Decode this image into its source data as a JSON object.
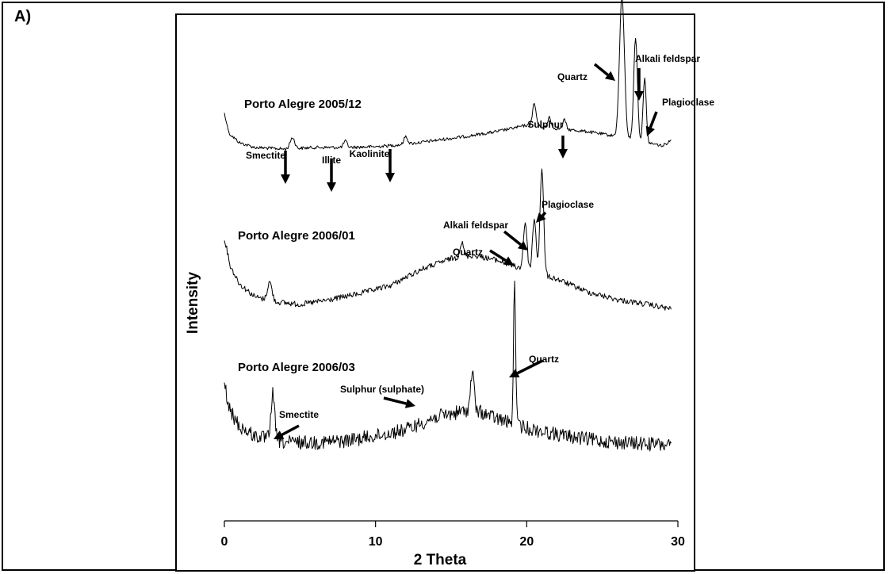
{
  "panel_label": "A)",
  "chart_data": {
    "type": "line",
    "xlabel": "2 Theta",
    "ylabel": "Intensity",
    "xlim": [
      0,
      30
    ],
    "x_ticks": [
      0,
      10,
      20,
      30
    ],
    "grid": false,
    "series": [
      {
        "name": "Porto Alegre 2005/12",
        "baseline": [
          [
            0,
            86
          ],
          [
            0.3,
            116
          ],
          [
            1,
            128
          ],
          [
            2,
            134
          ],
          [
            4,
            136
          ],
          [
            6,
            134
          ],
          [
            8,
            134
          ],
          [
            10,
            133
          ],
          [
            12,
            130
          ],
          [
            14,
            125
          ],
          [
            16,
            120
          ],
          [
            18,
            114
          ],
          [
            20,
            106
          ],
          [
            22,
            110
          ],
          [
            24,
            114
          ],
          [
            26,
            120
          ],
          [
            27,
            124
          ],
          [
            28,
            128
          ],
          [
            29,
            132
          ],
          [
            29.6,
            124
          ]
        ],
        "peaks": [
          [
            0.05,
            -6,
            0.05
          ],
          [
            4.5,
            14,
            0.15
          ],
          [
            8.0,
            8,
            0.12
          ],
          [
            12.0,
            10,
            0.12
          ],
          [
            20.5,
            28,
            0.12
          ],
          [
            21.5,
            14,
            0.1
          ],
          [
            22.5,
            12,
            0.1
          ],
          [
            26.3,
            178,
            0.16
          ],
          [
            27.2,
            130,
            0.12
          ],
          [
            27.8,
            82,
            0.1
          ]
        ],
        "noise": 2.0,
        "annotations": [
          {
            "text": "Smectite",
            "x": 4.5
          },
          {
            "text": "Illite",
            "x": 8.0
          },
          {
            "text": "Kaolinite",
            "x": 12.0
          },
          {
            "text": "Sulphur",
            "x": 22.5
          },
          {
            "text": "Quartz",
            "x": 26.3
          },
          {
            "text": "Alkali feldspar",
            "x": 27.2
          },
          {
            "text": "Plagioclase",
            "x": 27.8
          }
        ]
      },
      {
        "name": "Porto Alegre 2006/01",
        "baseline": [
          [
            0,
            60
          ],
          [
            0.4,
            96
          ],
          [
            1,
            118
          ],
          [
            2,
            134
          ],
          [
            3,
            140
          ],
          [
            5,
            144
          ],
          [
            7,
            138
          ],
          [
            9,
            130
          ],
          [
            11,
            120
          ],
          [
            13,
            100
          ],
          [
            15,
            86
          ],
          [
            16.5,
            82
          ],
          [
            18,
            88
          ],
          [
            19.5,
            98
          ],
          [
            20.5,
            104
          ],
          [
            22,
            112
          ],
          [
            24,
            128
          ],
          [
            26,
            138
          ],
          [
            28,
            144
          ],
          [
            29.6,
            150
          ]
        ],
        "peaks": [
          [
            3.0,
            24,
            0.15
          ],
          [
            15.7,
            18,
            0.12
          ],
          [
            19.9,
            60,
            0.12
          ],
          [
            20.5,
            68,
            0.12
          ],
          [
            21.0,
            132,
            0.12
          ]
        ],
        "noise": 3.5,
        "annotations": [
          {
            "text": "Quartz",
            "x": 19.9
          },
          {
            "text": "Alkali feldspar",
            "x": 20.5
          },
          {
            "text": "Plagioclase",
            "x": 21.0
          }
        ]
      },
      {
        "name": "Porto Alegre 2006/03",
        "baseline": [
          [
            0,
            62
          ],
          [
            0.3,
            96
          ],
          [
            1,
            118
          ],
          [
            2,
            130
          ],
          [
            4,
            138
          ],
          [
            6,
            138
          ],
          [
            8,
            136
          ],
          [
            10,
            130
          ],
          [
            12,
            122
          ],
          [
            14,
            106
          ],
          [
            16,
            98
          ],
          [
            17,
            100
          ],
          [
            18,
            108
          ],
          [
            20,
            120
          ],
          [
            22,
            128
          ],
          [
            24,
            134
          ],
          [
            26,
            138
          ],
          [
            28,
            140
          ],
          [
            29.6,
            142
          ]
        ],
        "peaks": [
          [
            3.2,
            58,
            0.12
          ],
          [
            16.4,
            48,
            0.12
          ],
          [
            19.2,
            180,
            0.07
          ]
        ],
        "noise": 9,
        "annotations": [
          {
            "text": "Smectite",
            "x": 3.2
          },
          {
            "text": "Sulphur (sulphate)",
            "x": 16.4
          },
          {
            "text": "Quartz",
            "x": 19.2
          }
        ]
      }
    ]
  }
}
